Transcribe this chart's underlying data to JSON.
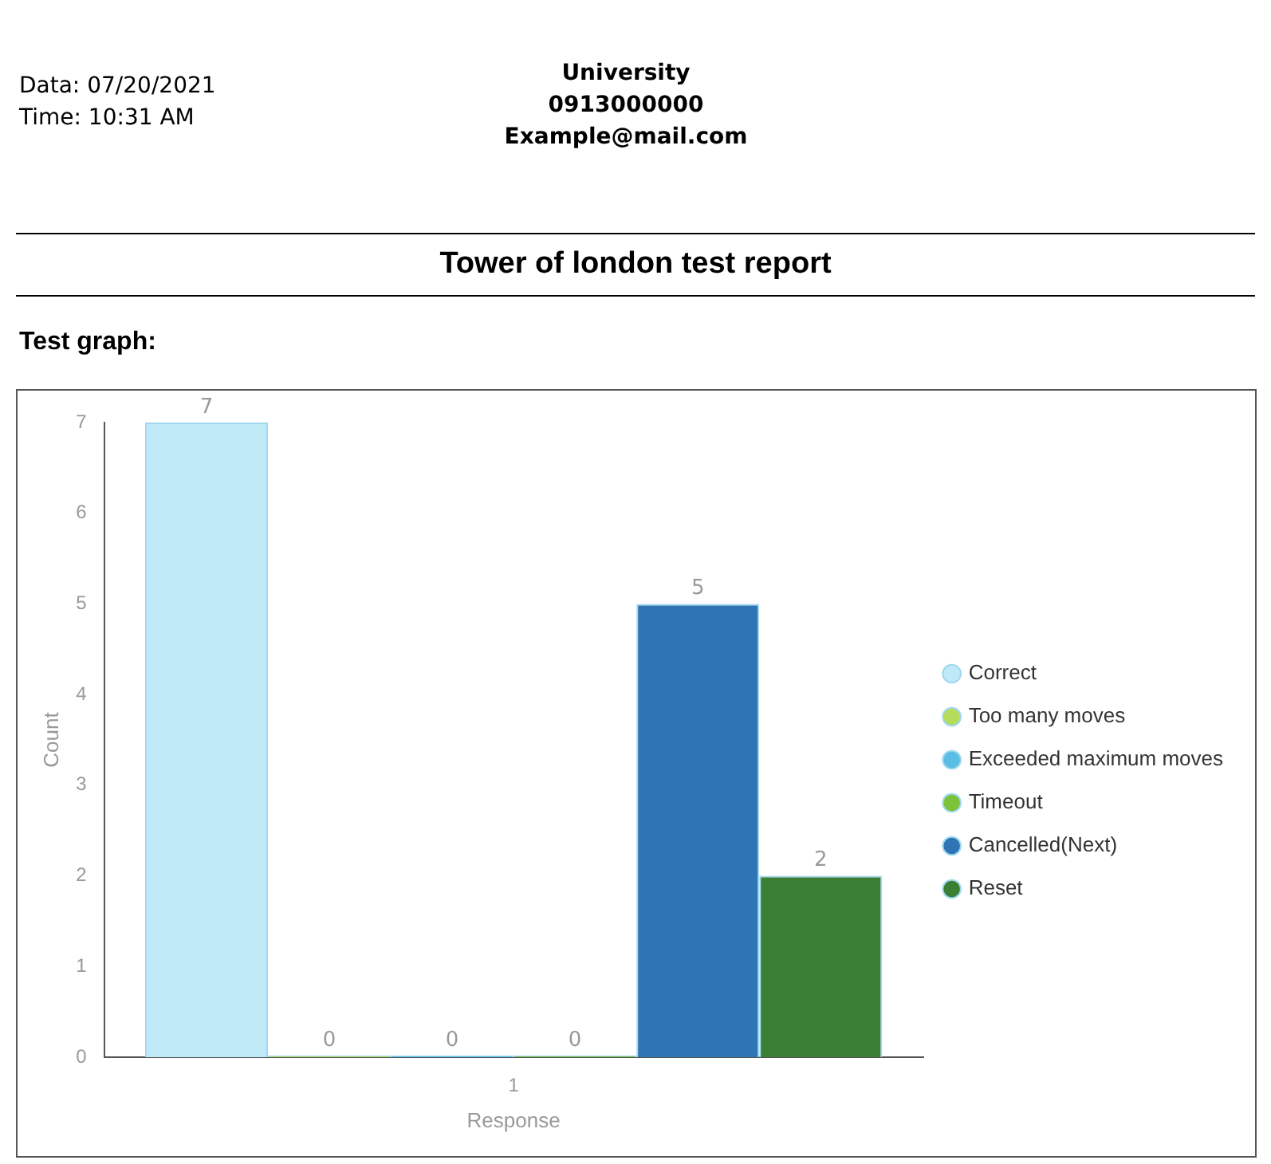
{
  "chart_data": {
    "type": "bar",
    "title": "Tower of london test report",
    "subtitle": "Test graph:",
    "xlabel": "Response",
    "ylabel": "Count",
    "annotations": [
      "Data: 07/20/2021",
      "Time: 10:31 AM",
      "University",
      "0913000000",
      "Example@mail.com"
    ],
    "categories": [
      "1"
    ],
    "series": [
      {
        "name": "Correct",
        "color": "#bfe9f7",
        "values": [
          7
        ]
      },
      {
        "name": "Too many moves",
        "color": "#b5dc5a",
        "values": [
          0
        ]
      },
      {
        "name": "Exceeded maximum moves",
        "color": "#5bbde3",
        "values": [
          0
        ]
      },
      {
        "name": "Timeout",
        "color": "#7cc23a",
        "values": [
          0
        ]
      },
      {
        "name": "Cancelled(Next)",
        "color": "#2f74b3",
        "values": [
          5
        ]
      },
      {
        "name": "Reset",
        "color": "#3a7f34",
        "values": [
          2
        ]
      }
    ],
    "ylim": [
      0,
      7
    ],
    "yticks": [
      0,
      1,
      2,
      3,
      4,
      5,
      6,
      7
    ],
    "grid": false,
    "legend": "right",
    "data_labels": true
  }
}
